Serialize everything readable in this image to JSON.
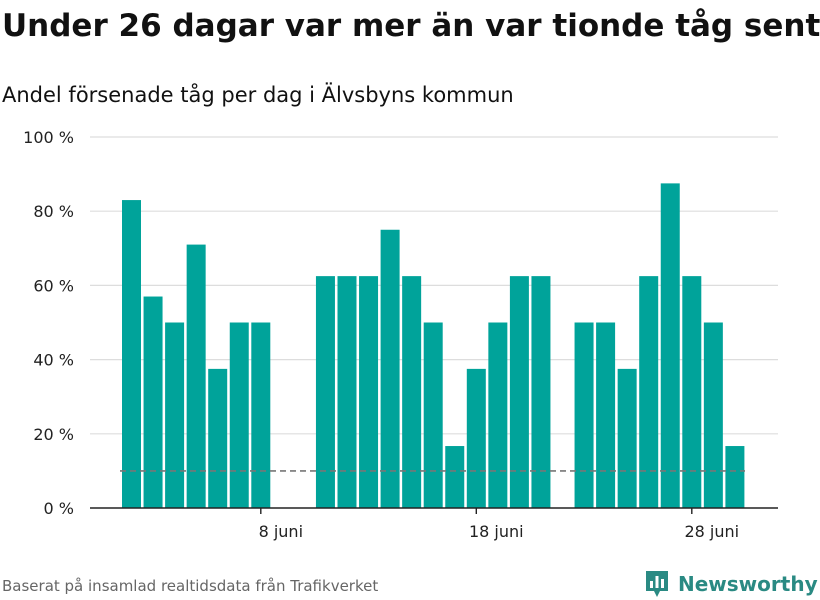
{
  "header": {
    "title": "Under 26 dagar var mer än var tionde tåg sent",
    "subtitle": "Andel försenade tåg per dag i Älvsbyns kommun"
  },
  "footer": {
    "source": "Baserat på insamlad realtidsdata från Trafikverket",
    "brand": "Newsworthy",
    "brand_icon": "bar-chart-logo-icon"
  },
  "colors": {
    "bar": "#00a39a",
    "reference_line": "#777777",
    "grid": "#dddddd",
    "axis": "#222222",
    "brand": "#2a8a83"
  },
  "chart_data": {
    "type": "bar",
    "title": "Under 26 dagar var mer än var tionde tåg sent",
    "subtitle": "Andel försenade tåg per dag i Älvsbyns kommun",
    "x_unit": "day of June",
    "x_tick_days": [
      8,
      18,
      28
    ],
    "x_tick_labels": [
      "8 juni",
      "18 juni",
      "28 juni"
    ],
    "y_ticks": [
      0,
      20,
      40,
      60,
      80,
      100
    ],
    "y_tick_labels": [
      "0 %",
      "20 %",
      "40 %",
      "60 %",
      "80 %",
      "100 %"
    ],
    "ylim": [
      0,
      100
    ],
    "reference_line": 10,
    "grid": true,
    "series": [
      {
        "values": [
          {
            "day": 2,
            "value": 83
          },
          {
            "day": 3,
            "value": 57
          },
          {
            "day": 4,
            "value": 50
          },
          {
            "day": 5,
            "value": 71
          },
          {
            "day": 6,
            "value": 37.5
          },
          {
            "day": 7,
            "value": 50
          },
          {
            "day": 8,
            "value": 50
          },
          {
            "day": 11,
            "value": 62.5
          },
          {
            "day": 12,
            "value": 62.5
          },
          {
            "day": 13,
            "value": 62.5
          },
          {
            "day": 14,
            "value": 75
          },
          {
            "day": 15,
            "value": 62.5
          },
          {
            "day": 16,
            "value": 50
          },
          {
            "day": 17,
            "value": 16.7
          },
          {
            "day": 18,
            "value": 37.5
          },
          {
            "day": 19,
            "value": 50
          },
          {
            "day": 20,
            "value": 62.5
          },
          {
            "day": 21,
            "value": 62.5
          },
          {
            "day": 23,
            "value": 50
          },
          {
            "day": 24,
            "value": 50
          },
          {
            "day": 25,
            "value": 37.5
          },
          {
            "day": 26,
            "value": 62.5
          },
          {
            "day": 27,
            "value": 87.5
          },
          {
            "day": 28,
            "value": 62.5
          },
          {
            "day": 29,
            "value": 50
          },
          {
            "day": 30,
            "value": 16.7
          }
        ]
      }
    ]
  }
}
